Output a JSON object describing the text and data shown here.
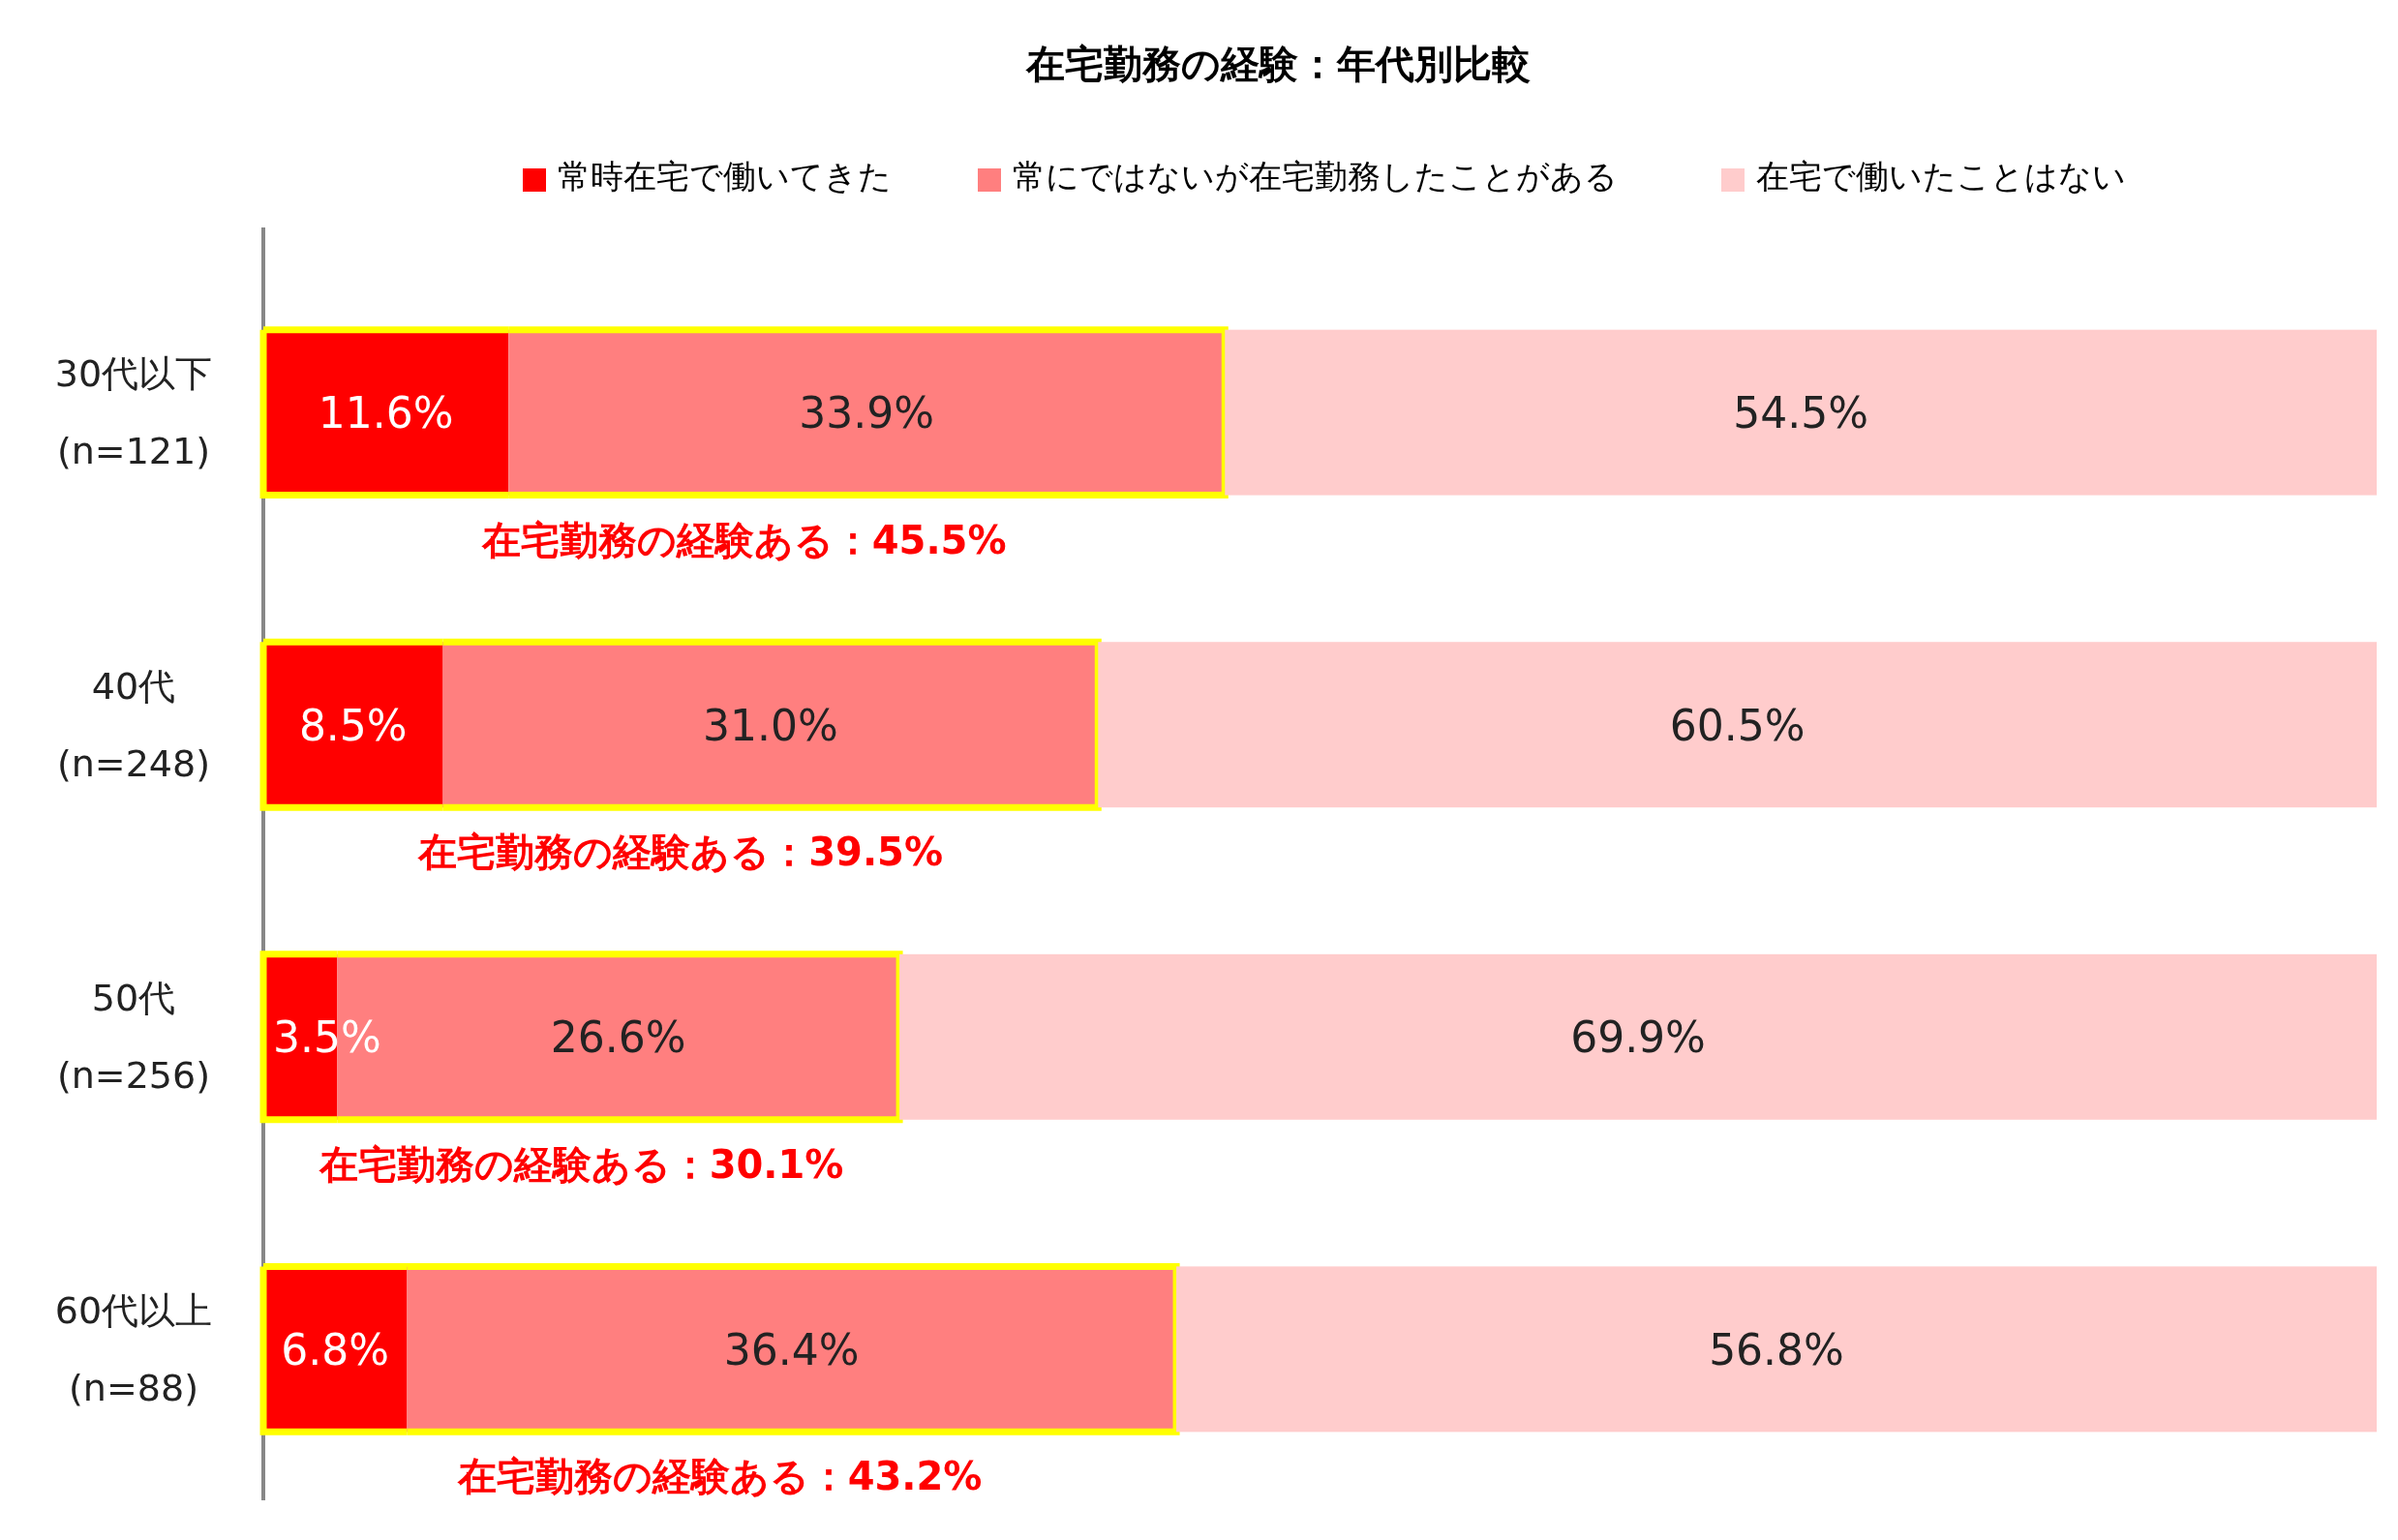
{
  "chart_data": {
    "type": "bar",
    "orientation": "horizontal",
    "stacked": true,
    "title": "在宅勤務の経験：年代別比較",
    "categories": [
      "30代以下\n(n=121)",
      "40代\n(n=248)",
      "50代\n(n=256)",
      "60代以上\n(n=88)"
    ],
    "series": [
      {
        "name": "常時在宅で働いてきた",
        "color": "#ff0000",
        "values": [
          11.6,
          8.5,
          3.5,
          6.8
        ],
        "value_labels": [
          "11.6%",
          "8.5%",
          "3.5%",
          "6.8%"
        ]
      },
      {
        "name": "常にではないが在宅勤務したことがある",
        "color": "#ff7f7f",
        "values": [
          33.9,
          31.0,
          26.6,
          36.4
        ],
        "value_labels": [
          "33.9%",
          "31.0%",
          "26.6%",
          "36.4%"
        ]
      },
      {
        "name": "在宅で働いたことはない",
        "color": "#ffcccc",
        "values": [
          54.5,
          60.5,
          69.9,
          56.8
        ],
        "value_labels": [
          "54.5%",
          "60.5%",
          "69.9%",
          "56.8%"
        ]
      }
    ],
    "xlim": [
      0,
      100
    ],
    "tick_labels": "y",
    "legend": "top",
    "annotations": [
      "在宅勤務の経験ある：45.5%",
      "在宅勤務の経験ある：39.5%",
      "在宅勤務の経験ある：30.1%",
      "在宅勤務の経験ある：43.2%"
    ]
  }
}
